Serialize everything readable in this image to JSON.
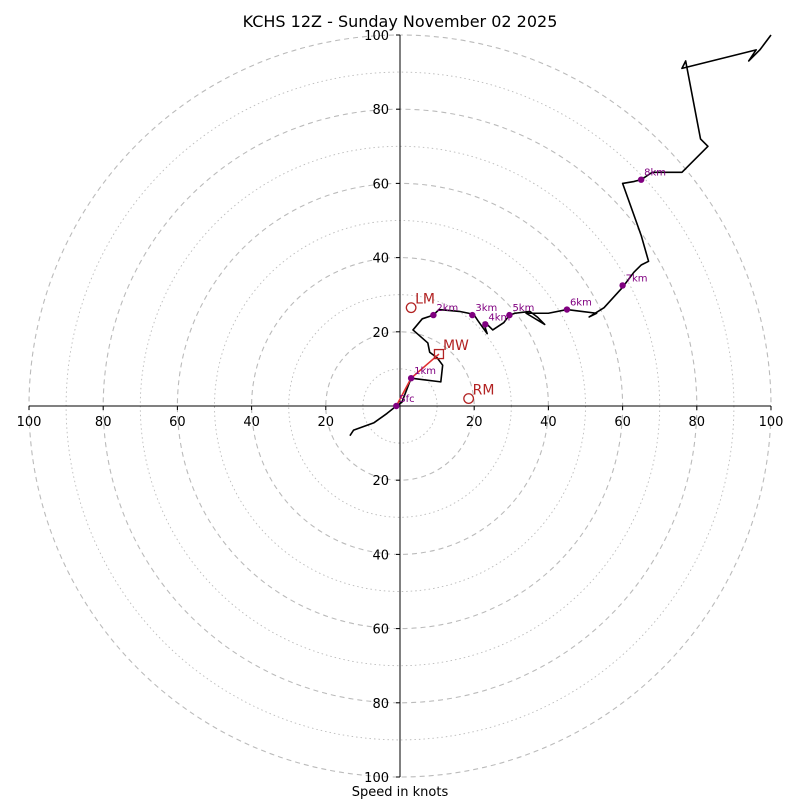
{
  "chart_data": {
    "type": "hodograph",
    "title": "KCHS 12Z - Sunday November 02 2025",
    "xlabel": "Speed in knots",
    "units": "knots",
    "xlim": [
      -100,
      100
    ],
    "ylim": [
      -100,
      100
    ],
    "ring_major_step": 20,
    "ring_minor_step": 10,
    "tick_values": [
      20,
      40,
      60,
      80,
      100
    ],
    "colors": {
      "profile": "#000000",
      "lowlevel": "#e03030",
      "height_marker": "#800080",
      "storm_marker": "#b22222",
      "ring": "#bbbbbb",
      "axis": "#000000"
    },
    "profile": [
      [
        -13.5,
        -8
      ],
      [
        -12.5,
        -6.5
      ],
      [
        -7,
        -4.5
      ],
      [
        -3.5,
        -2
      ],
      [
        -1,
        0
      ],
      [
        0.5,
        1
      ],
      [
        3,
        7.5
      ],
      [
        11,
        6.5
      ],
      [
        11.5,
        11
      ],
      [
        10,
        13
      ],
      [
        8,
        14.5
      ],
      [
        7.5,
        17
      ],
      [
        3.5,
        20.5
      ],
      [
        6,
        23.5
      ],
      [
        9,
        24.5
      ],
      [
        10.5,
        26
      ],
      [
        16,
        25.5
      ],
      [
        18.5,
        25
      ],
      [
        20,
        24.5
      ],
      [
        21,
        23
      ],
      [
        23.5,
        19.5
      ],
      [
        22.5,
        22.5
      ],
      [
        23.5,
        22
      ],
      [
        25,
        20.5
      ],
      [
        28,
        22.5
      ],
      [
        29.5,
        24.5
      ],
      [
        31,
        25
      ],
      [
        35,
        25.5
      ],
      [
        37,
        24
      ],
      [
        39,
        22
      ],
      [
        34,
        25
      ],
      [
        40,
        25
      ],
      [
        45,
        26
      ],
      [
        49,
        25.5
      ],
      [
        53,
        25
      ],
      [
        51,
        24
      ],
      [
        55,
        26.5
      ],
      [
        60,
        32
      ],
      [
        63,
        36
      ],
      [
        65,
        38
      ],
      [
        67,
        39
      ],
      [
        65,
        46
      ],
      [
        60,
        60
      ],
      [
        63,
        60.5
      ],
      [
        65,
        61
      ],
      [
        68,
        63
      ],
      [
        74,
        63
      ],
      [
        76,
        63
      ],
      [
        83,
        70
      ],
      [
        81,
        72
      ],
      [
        77,
        93
      ],
      [
        76,
        91
      ],
      [
        96,
        96
      ],
      [
        94,
        93
      ],
      [
        97,
        96
      ],
      [
        100,
        100
      ]
    ],
    "lowlevel_segment": [
      [
        -1,
        0
      ],
      [
        3,
        7.5
      ],
      [
        10.5,
        14
      ]
    ],
    "height_markers": [
      {
        "label": "Sfc",
        "u": -1,
        "v": 0
      },
      {
        "label": "1km",
        "u": 3,
        "v": 7.5
      },
      {
        "label": "2km",
        "u": 9,
        "v": 24.5
      },
      {
        "label": "3km",
        "u": 19.5,
        "v": 24.5
      },
      {
        "label": "4km",
        "u": 23,
        "v": 22
      },
      {
        "label": "5km",
        "u": 29.5,
        "v": 24.5
      },
      {
        "label": "6km",
        "u": 45,
        "v": 26
      },
      {
        "label": "7km",
        "u": 60,
        "v": 32.5
      },
      {
        "label": "8km",
        "u": 65,
        "v": 61
      }
    ],
    "storm_markers": [
      {
        "label": "LM",
        "u": 3,
        "v": 26.5,
        "symbol": "circle"
      },
      {
        "label": "MW",
        "u": 10.5,
        "v": 14,
        "symbol": "square"
      },
      {
        "label": "RM",
        "u": 18.5,
        "v": 2,
        "symbol": "circle"
      }
    ]
  }
}
